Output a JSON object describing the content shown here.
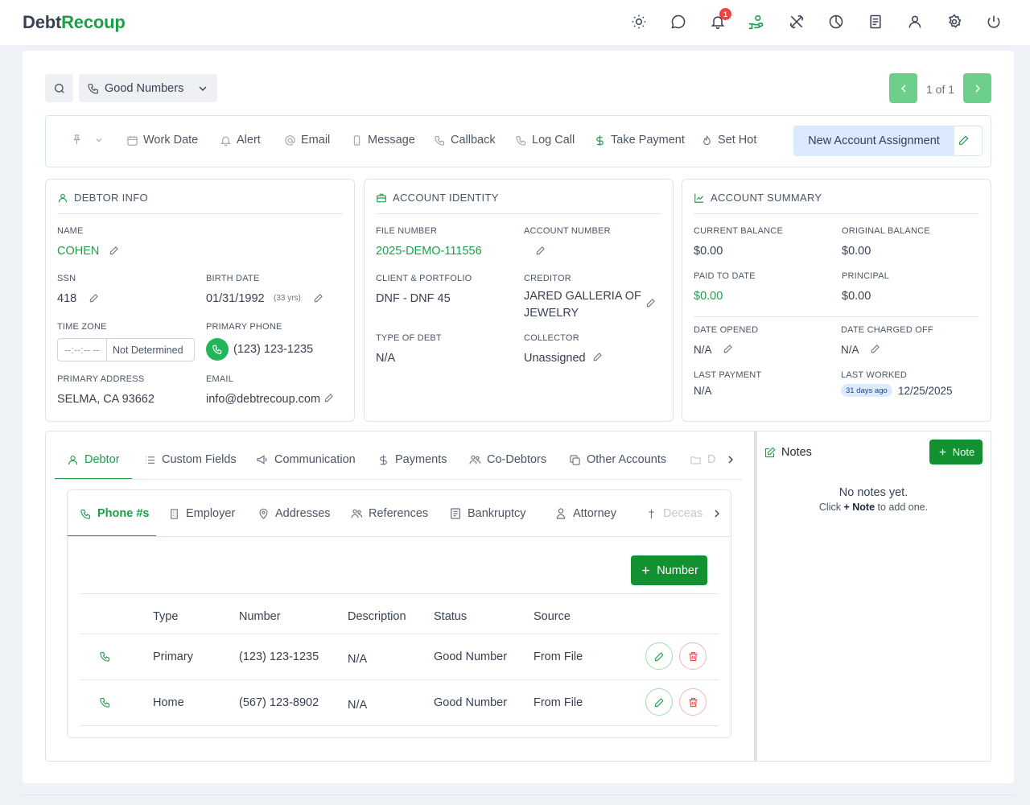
{
  "app": {
    "logo_part1": "Debt",
    "logo_part2": "Recoup",
    "notification_count": "1"
  },
  "topbar_icons": [
    "sun-icon",
    "chat-icon",
    "bell-icon",
    "hand-coin-icon",
    "tools-icon",
    "clock-chart-icon",
    "document-icon",
    "user-icon",
    "gear-icon",
    "power-icon"
  ],
  "filter": {
    "selected": "Good Numbers"
  },
  "pagination": {
    "text": "1 of 1"
  },
  "actions": {
    "work_date": "Work Date",
    "alert": "Alert",
    "email": "Email",
    "message": "Message",
    "callback": "Callback",
    "log_call": "Log Call",
    "take_payment": "Take Payment",
    "set_hot": "Set Hot",
    "assignment": "New Account Assignment"
  },
  "debtor_info": {
    "header": "DEBTOR INFO",
    "name_label": "NAME",
    "name": "COHEN",
    "ssn_label": "SSN",
    "ssn": "418",
    "birth_label": "BIRTH DATE",
    "birth": "01/31/1992",
    "age": "(33 yrs)",
    "tz_label": "TIME ZONE",
    "tz_time": "--:--:-- --",
    "tz_value": "Not Determined",
    "phone_label": "PRIMARY PHONE",
    "phone": "(123) 123-1235",
    "address_label": "PRIMARY ADDRESS",
    "address": "SELMA, CA 93662",
    "email_label": "EMAIL",
    "email": "info@debtrecoup.com"
  },
  "account_identity": {
    "header": "ACCOUNT IDENTITY",
    "file_label": "FILE NUMBER",
    "file": "2025-DEMO-111556",
    "account_label": "ACCOUNT NUMBER",
    "client_label": "CLIENT & PORTFOLIO",
    "client": "DNF - DNF 45",
    "creditor_label": "CREDITOR",
    "creditor_line1": "JARED GALLERIA OF",
    "creditor_line2": "JEWELRY",
    "type_label": "TYPE OF DEBT",
    "type": "N/A",
    "collector_label": "COLLECTOR",
    "collector": "Unassigned"
  },
  "account_summary": {
    "header": "ACCOUNT SUMMARY",
    "current_label": "CURRENT BALANCE",
    "current": "$0.00",
    "original_label": "ORIGINAL BALANCE",
    "original": "$0.00",
    "paid_label": "PAID TO DATE",
    "paid": "$0.00",
    "principal_label": "PRINCIPAL",
    "principal": "$0.00",
    "opened_label": "DATE OPENED",
    "opened": "N/A",
    "charged_label": "DATE CHARGED OFF",
    "charged": "N/A",
    "lastpay_label": "LAST PAYMENT",
    "lastpay": "N/A",
    "lastworked_label": "LAST WORKED",
    "lastworked_ago": "31 days ago",
    "lastworked": "12/25/2025"
  },
  "main_tabs": [
    "Debtor",
    "Custom Fields",
    "Communication",
    "Payments",
    "Co-Debtors",
    "Other Accounts",
    "D"
  ],
  "sub_tabs": [
    "Phone #s",
    "Employer",
    "Addresses",
    "References",
    "Bankruptcy",
    "Attorney",
    "Decease"
  ],
  "phones": {
    "add_label": "Number",
    "columns": [
      "Type",
      "Number",
      "Description",
      "Status",
      "Source"
    ],
    "rows": [
      {
        "type": "Primary",
        "number": "(123) 123-1235",
        "description": "N/A",
        "status": "Good Number",
        "source": "From File"
      },
      {
        "type": "Home",
        "number": "(567) 123-8902",
        "description": "N/A",
        "status": "Good Number",
        "source": "From File"
      }
    ]
  },
  "notes": {
    "title": "Notes",
    "add_label": "Note",
    "empty": "No notes yet.",
    "hint_pre": "Click",
    "hint_bold": "+ Note",
    "hint_post": "to add one."
  },
  "colors": {
    "brand_green": "#1e9e48",
    "button_green": "#13902f",
    "pager_green": "#6ccf8a",
    "danger": "#ef4444",
    "info_blue": "#dbeafe"
  }
}
